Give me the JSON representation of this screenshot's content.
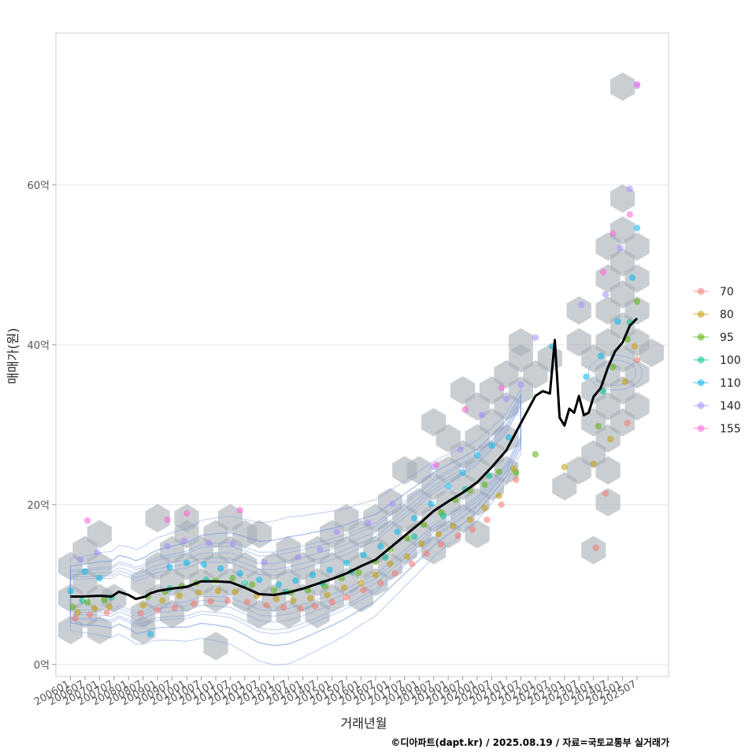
{
  "chart_data": {
    "type": "scatter",
    "xlabel": "거래년월",
    "ylabel": "매매가(원)",
    "caption": "©디아파트(dapt.kr) / 2025.08.19 / 자료=국토교통부 실거래가",
    "ylim": [
      -1.5,
      79
    ],
    "xlim": [
      "2005-07",
      "2026-08"
    ],
    "y_ticks": [
      {
        "value": 0,
        "label": "0억"
      },
      {
        "value": 20,
        "label": "20억"
      },
      {
        "value": 40,
        "label": "40억"
      },
      {
        "value": 60,
        "label": "60억"
      }
    ],
    "x_ticks": [
      "200601",
      "200607",
      "200701",
      "200707",
      "200801",
      "200807",
      "200901",
      "200907",
      "201001",
      "201007",
      "201101",
      "201107",
      "201201",
      "201207",
      "201301",
      "201307",
      "201401",
      "201407",
      "201501",
      "201507",
      "201601",
      "201607",
      "201701",
      "201707",
      "201801",
      "201807",
      "201901",
      "201907",
      "202001",
      "202007",
      "202101",
      "202107",
      "202201",
      "202207",
      "202301",
      "202307",
      "202401",
      "202407",
      "202501",
      "202507"
    ],
    "grid": "horizontal",
    "legend_position": "right",
    "legend": [
      {
        "label": "70",
        "color": "#F8766D"
      },
      {
        "label": "80",
        "color": "#C49A00"
      },
      {
        "label": "95",
        "color": "#53B400"
      },
      {
        "label": "100",
        "color": "#00C094"
      },
      {
        "label": "110",
        "color": "#00B6EB"
      },
      {
        "label": "140",
        "color": "#A58AFF"
      },
      {
        "label": "155",
        "color": "#FB61D7"
      }
    ],
    "median_line": {
      "color": "#000000",
      "x": [
        "2006-01",
        "2006-06",
        "2007-01",
        "2007-06",
        "2007-09",
        "2008-01",
        "2008-04",
        "2008-08",
        "2008-10",
        "2009-01",
        "2009-07",
        "2010-01",
        "2010-07",
        "2011-01",
        "2011-07",
        "2012-01",
        "2012-07",
        "2013-01",
        "2013-07",
        "2014-01",
        "2014-07",
        "2015-01",
        "2015-07",
        "2016-01",
        "2016-07",
        "2017-01",
        "2017-07",
        "2018-01",
        "2018-07",
        "2019-01",
        "2019-07",
        "2020-01",
        "2020-07",
        "2021-01",
        "2021-07",
        "2022-01",
        "2022-04",
        "2022-07",
        "2022-09",
        "2022-11",
        "2023-01",
        "2023-03",
        "2023-05",
        "2023-07",
        "2023-09",
        "2023-11",
        "2024-01",
        "2024-04",
        "2024-07",
        "2024-10",
        "2025-01",
        "2025-04",
        "2025-07"
      ],
      "y": [
        8.5,
        8.5,
        8.6,
        8.5,
        9.1,
        8.7,
        8.2,
        8.5,
        8.9,
        9.2,
        9.5,
        9.7,
        10.4,
        10.4,
        10.3,
        9.6,
        8.8,
        8.7,
        9.0,
        9.5,
        10.1,
        10.7,
        11.4,
        12.3,
        13.1,
        14.6,
        16.1,
        17.6,
        19.2,
        20.4,
        21.5,
        22.8,
        24.7,
        26.8,
        30.2,
        33.6,
        34.2,
        33.9,
        40.6,
        30.9,
        29.9,
        32.0,
        31.5,
        33.6,
        31.2,
        31.5,
        33.5,
        34.6,
        37.2,
        39.2,
        40.3,
        42.4,
        43.3
      ]
    },
    "series": [
      {
        "name": "70",
        "color": "#F8766D",
        "x": [
          "2006-03",
          "2006-09",
          "2007-04",
          "2008-06",
          "2009-01",
          "2009-08",
          "2010-04",
          "2010-11",
          "2011-06",
          "2012-02",
          "2012-10",
          "2013-05",
          "2013-12",
          "2014-06",
          "2015-01",
          "2015-07",
          "2016-02",
          "2016-09",
          "2017-03",
          "2017-10",
          "2018-04",
          "2018-10",
          "2019-05",
          "2019-11",
          "2020-05",
          "2020-11",
          "2021-05",
          "2024-02",
          "2024-06",
          "2025-03",
          "2025-07"
        ],
        "y": [
          5.8,
          6.2,
          6.5,
          6.4,
          6.8,
          7.1,
          7.6,
          7.9,
          8.0,
          7.8,
          7.4,
          7.1,
          7.0,
          7.3,
          7.8,
          8.4,
          9.3,
          10.2,
          11.4,
          12.6,
          13.9,
          15.0,
          16.1,
          16.9,
          18.1,
          20.0,
          23.1,
          14.6,
          21.4,
          30.2,
          38.1
        ]
      },
      {
        "name": "80",
        "color": "#C49A00",
        "x": [
          "2006-04",
          "2006-11",
          "2007-05",
          "2008-07",
          "2009-03",
          "2009-10",
          "2010-06",
          "2011-02",
          "2011-09",
          "2012-06",
          "2013-02",
          "2013-09",
          "2014-04",
          "2014-11",
          "2015-06",
          "2016-01",
          "2016-07",
          "2017-01",
          "2017-08",
          "2018-02",
          "2018-09",
          "2019-03",
          "2019-10",
          "2020-04",
          "2020-10",
          "2021-04",
          "2023-01",
          "2024-01",
          "2024-08",
          "2025-02",
          "2025-06"
        ],
        "y": [
          6.5,
          7.0,
          7.2,
          7.4,
          8.0,
          8.6,
          9.0,
          9.2,
          9.1,
          8.6,
          8.2,
          8.0,
          8.3,
          8.7,
          9.6,
          10.2,
          11.2,
          12.6,
          13.5,
          15.1,
          16.3,
          17.3,
          18.1,
          19.6,
          21.1,
          24.5,
          24.7,
          25.1,
          28.2,
          35.4,
          39.8
        ]
      },
      {
        "name": "95",
        "color": "#53B400",
        "x": [
          "2006-02",
          "2006-08",
          "2007-03",
          "2008-09",
          "2009-04",
          "2009-11",
          "2010-05",
          "2011-01",
          "2011-08",
          "2012-04",
          "2013-01",
          "2013-08",
          "2014-03",
          "2014-10",
          "2015-05",
          "2015-12",
          "2016-07",
          "2017-01",
          "2017-08",
          "2018-03",
          "2018-10",
          "2019-04",
          "2019-10",
          "2020-04",
          "2020-10",
          "2021-05",
          "2022-01",
          "2024-03",
          "2024-09",
          "2025-03",
          "2025-07"
        ],
        "y": [
          7.2,
          7.8,
          8.1,
          8.5,
          9.1,
          9.8,
          10.2,
          10.5,
          10.8,
          10.0,
          9.3,
          9.0,
          9.3,
          9.8,
          10.8,
          11.5,
          12.9,
          14.4,
          15.8,
          17.5,
          19.0,
          20.6,
          21.8,
          22.5,
          24.1,
          24.0,
          26.3,
          29.8,
          37.2,
          40.7,
          45.4
        ]
      },
      {
        "name": "100",
        "color": "#00C094",
        "x": [
          "2006-06",
          "2007-06",
          "2009-06",
          "2010-09",
          "2012-01",
          "2013-06",
          "2014-09",
          "2015-09",
          "2016-11",
          "2017-11",
          "2018-11",
          "2019-08",
          "2020-06",
          "2024-05",
          "2025-04"
        ],
        "y": [
          8.0,
          8.4,
          9.5,
          10.6,
          10.2,
          9.1,
          10.2,
          11.6,
          13.4,
          16.0,
          18.6,
          21.9,
          23.6,
          34.2,
          42.8
        ]
      },
      {
        "name": "110",
        "color": "#00B6EB",
        "x": [
          "2006-01",
          "2006-07",
          "2007-01",
          "2008-10",
          "2009-06",
          "2010-01",
          "2010-08",
          "2011-03",
          "2011-11",
          "2012-07",
          "2013-03",
          "2013-10",
          "2014-05",
          "2014-12",
          "2015-07",
          "2016-02",
          "2016-09",
          "2017-04",
          "2017-11",
          "2018-06",
          "2019-01",
          "2019-07",
          "2020-01",
          "2020-07",
          "2021-02",
          "2022-08",
          "2023-10",
          "2024-04",
          "2024-11",
          "2025-05",
          "2025-07"
        ],
        "y": [
          9.2,
          11.6,
          10.8,
          3.8,
          12.2,
          12.7,
          12.5,
          12.0,
          11.4,
          10.6,
          10.0,
          10.5,
          11.2,
          11.8,
          12.7,
          13.7,
          14.8,
          16.6,
          18.3,
          20.1,
          22.3,
          24.0,
          26.2,
          27.4,
          28.4,
          39.8,
          36.0,
          38.6,
          42.9,
          48.4,
          54.6
        ]
      },
      {
        "name": "140",
        "color": "#A58AFF",
        "x": [
          "2006-05",
          "2006-12",
          "2009-05",
          "2009-12",
          "2010-10",
          "2011-08",
          "2012-09",
          "2013-11",
          "2014-08",
          "2015-03",
          "2016-04",
          "2017-02",
          "2018-07",
          "2019-06",
          "2020-03",
          "2021-01",
          "2021-07",
          "2022-01",
          "2023-08",
          "2024-06",
          "2024-12",
          "2025-04",
          "2025-07"
        ],
        "y": [
          13.1,
          14.0,
          14.8,
          15.5,
          15.2,
          15.1,
          12.8,
          13.4,
          14.4,
          16.6,
          17.7,
          20.1,
          24.7,
          26.9,
          31.2,
          33.2,
          35.0,
          40.9,
          45.0,
          46.3,
          52.1,
          59.5,
          72.4
        ]
      },
      {
        "name": "155",
        "color": "#FB61D7",
        "x": [
          "2006-08",
          "2009-05",
          "2010-01",
          "2011-11",
          "2018-08",
          "2019-08",
          "2020-11",
          "2024-05",
          "2024-09",
          "2025-04",
          "2025-07"
        ],
        "y": [
          18.0,
          18.1,
          18.9,
          19.3,
          25.0,
          31.9,
          34.6,
          49.1,
          53.9,
          56.3,
          72.6
        ]
      }
    ],
    "hexbins": [
      {
        "x": "2006-01",
        "y": 4.3
      },
      {
        "x": "2006-01",
        "y": 8.3
      },
      {
        "x": "2006-01",
        "y": 12.3
      },
      {
        "x": "2006-07",
        "y": 6.3
      },
      {
        "x": "2006-07",
        "y": 10.3
      },
      {
        "x": "2006-07",
        "y": 14.3
      },
      {
        "x": "2007-01",
        "y": 4.3
      },
      {
        "x": "2007-01",
        "y": 8.3
      },
      {
        "x": "2007-01",
        "y": 12.3
      },
      {
        "x": "2007-01",
        "y": 16.3
      },
      {
        "x": "2007-07",
        "y": 8.3
      },
      {
        "x": "2008-07",
        "y": 6.3
      },
      {
        "x": "2008-07",
        "y": 10.3
      },
      {
        "x": "2008-07",
        "y": 4.3
      },
      {
        "x": "2009-01",
        "y": 8.3
      },
      {
        "x": "2009-01",
        "y": 12.3
      },
      {
        "x": "2009-01",
        "y": 18.3
      },
      {
        "x": "2009-07",
        "y": 6.3
      },
      {
        "x": "2009-07",
        "y": 10.3
      },
      {
        "x": "2009-07",
        "y": 14.3
      },
      {
        "x": "2010-01",
        "y": 8.3
      },
      {
        "x": "2010-01",
        "y": 12.3
      },
      {
        "x": "2010-01",
        "y": 16.3
      },
      {
        "x": "2010-01",
        "y": 18.3
      },
      {
        "x": "2010-07",
        "y": 10.3
      },
      {
        "x": "2010-07",
        "y": 14.3
      },
      {
        "x": "2011-01",
        "y": 8.3
      },
      {
        "x": "2011-01",
        "y": 12.3
      },
      {
        "x": "2011-01",
        "y": 16.3
      },
      {
        "x": "2011-01",
        "y": 2.3
      },
      {
        "x": "2011-07",
        "y": 10.3
      },
      {
        "x": "2011-07",
        "y": 14.3
      },
      {
        "x": "2011-07",
        "y": 18.3
      },
      {
        "x": "2012-01",
        "y": 8.3
      },
      {
        "x": "2012-01",
        "y": 12.3
      },
      {
        "x": "2012-01",
        "y": 16.3
      },
      {
        "x": "2012-07",
        "y": 6.3
      },
      {
        "x": "2012-07",
        "y": 10.3
      },
      {
        "x": "2012-07",
        "y": 16.3
      },
      {
        "x": "2013-01",
        "y": 8.3
      },
      {
        "x": "2013-01",
        "y": 12.3
      },
      {
        "x": "2013-07",
        "y": 6.3
      },
      {
        "x": "2013-07",
        "y": 10.3
      },
      {
        "x": "2013-07",
        "y": 14.3
      },
      {
        "x": "2014-01",
        "y": 8.3
      },
      {
        "x": "2014-01",
        "y": 12.3
      },
      {
        "x": "2014-07",
        "y": 6.3
      },
      {
        "x": "2014-07",
        "y": 10.3
      },
      {
        "x": "2014-07",
        "y": 14.3
      },
      {
        "x": "2015-01",
        "y": 8.3
      },
      {
        "x": "2015-01",
        "y": 12.3
      },
      {
        "x": "2015-01",
        "y": 16.3
      },
      {
        "x": "2015-07",
        "y": 10.3
      },
      {
        "x": "2015-07",
        "y": 14.3
      },
      {
        "x": "2015-07",
        "y": 18.3
      },
      {
        "x": "2016-01",
        "y": 8.3
      },
      {
        "x": "2016-01",
        "y": 12.3
      },
      {
        "x": "2016-01",
        "y": 16.3
      },
      {
        "x": "2016-07",
        "y": 10.3
      },
      {
        "x": "2016-07",
        "y": 14.3
      },
      {
        "x": "2016-07",
        "y": 18.3
      },
      {
        "x": "2017-01",
        "y": 12.3
      },
      {
        "x": "2017-01",
        "y": 16.3
      },
      {
        "x": "2017-01",
        "y": 20.3
      },
      {
        "x": "2017-07",
        "y": 14.3
      },
      {
        "x": "2017-07",
        "y": 18.3
      },
      {
        "x": "2017-07",
        "y": 24.3
      },
      {
        "x": "2018-01",
        "y": 16.3
      },
      {
        "x": "2018-01",
        "y": 20.3
      },
      {
        "x": "2018-01",
        "y": 24.3
      },
      {
        "x": "2018-07",
        "y": 14.3
      },
      {
        "x": "2018-07",
        "y": 18.3
      },
      {
        "x": "2018-07",
        "y": 22.3
      },
      {
        "x": "2018-07",
        "y": 30.3
      },
      {
        "x": "2019-01",
        "y": 16.3
      },
      {
        "x": "2019-01",
        "y": 20.3
      },
      {
        "x": "2019-01",
        "y": 24.3
      },
      {
        "x": "2019-01",
        "y": 28.3
      },
      {
        "x": "2019-07",
        "y": 18.3
      },
      {
        "x": "2019-07",
        "y": 22.3
      },
      {
        "x": "2019-07",
        "y": 26.3
      },
      {
        "x": "2019-07",
        "y": 34.3
      },
      {
        "x": "2020-01",
        "y": 16.3
      },
      {
        "x": "2020-01",
        "y": 20.3
      },
      {
        "x": "2020-01",
        "y": 24.3
      },
      {
        "x": "2020-01",
        "y": 28.3
      },
      {
        "x": "2020-01",
        "y": 32.3
      },
      {
        "x": "2020-07",
        "y": 22.3
      },
      {
        "x": "2020-07",
        "y": 26.3
      },
      {
        "x": "2020-07",
        "y": 30.3
      },
      {
        "x": "2020-07",
        "y": 34.3
      },
      {
        "x": "2021-01",
        "y": 24.3
      },
      {
        "x": "2021-01",
        "y": 28.3
      },
      {
        "x": "2021-01",
        "y": 32.3
      },
      {
        "x": "2021-01",
        "y": 36.3
      },
      {
        "x": "2021-07",
        "y": 38.3
      },
      {
        "x": "2021-07",
        "y": 34.3
      },
      {
        "x": "2021-07",
        "y": 40.3
      },
      {
        "x": "2022-01",
        "y": 36.3
      },
      {
        "x": "2022-07",
        "y": 38.3
      },
      {
        "x": "2023-01",
        "y": 22.3
      },
      {
        "x": "2023-07",
        "y": 40.3
      },
      {
        "x": "2023-07",
        "y": 44.3
      },
      {
        "x": "2023-07",
        "y": 24.3
      },
      {
        "x": "2024-01",
        "y": 14.3
      },
      {
        "x": "2024-01",
        "y": 26.3
      },
      {
        "x": "2024-01",
        "y": 30.3
      },
      {
        "x": "2024-01",
        "y": 34.3
      },
      {
        "x": "2024-01",
        "y": 38.3
      },
      {
        "x": "2024-07",
        "y": 20.3
      },
      {
        "x": "2024-07",
        "y": 24.3
      },
      {
        "x": "2024-07",
        "y": 28.3
      },
      {
        "x": "2024-07",
        "y": 32.3
      },
      {
        "x": "2024-07",
        "y": 36.3
      },
      {
        "x": "2024-07",
        "y": 40.3
      },
      {
        "x": "2024-07",
        "y": 44.3
      },
      {
        "x": "2024-07",
        "y": 48.3
      },
      {
        "x": "2024-07",
        "y": 52.3
      },
      {
        "x": "2025-01",
        "y": 30.3
      },
      {
        "x": "2025-01",
        "y": 34.3
      },
      {
        "x": "2025-01",
        "y": 38.3
      },
      {
        "x": "2025-01",
        "y": 42.3
      },
      {
        "x": "2025-01",
        "y": 46.3
      },
      {
        "x": "2025-01",
        "y": 50.3
      },
      {
        "x": "2025-01",
        "y": 54.3
      },
      {
        "x": "2025-01",
        "y": 58.3
      },
      {
        "x": "2025-01",
        "y": 72.3
      },
      {
        "x": "2025-07",
        "y": 32.3
      },
      {
        "x": "2025-07",
        "y": 36.3
      },
      {
        "x": "2025-07",
        "y": 40.3
      },
      {
        "x": "2025-07",
        "y": 44.3
      },
      {
        "x": "2025-07",
        "y": 48.3
      },
      {
        "x": "2025-07",
        "y": 52.3
      },
      {
        "x": "2026-01",
        "y": 39.0
      }
    ]
  }
}
